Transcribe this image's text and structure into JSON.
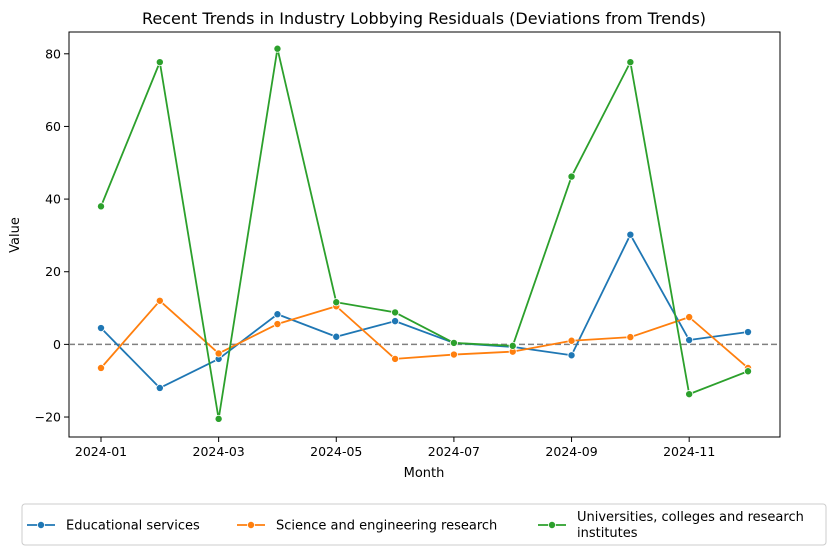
{
  "chart_data": {
    "type": "line",
    "title": "Recent Trends in Industry Lobbying Residuals (Deviations from Trends)",
    "xlabel": "Month",
    "ylabel": "Value",
    "x": [
      "2024-01",
      "2024-02",
      "2024-03",
      "2024-04",
      "2024-05",
      "2024-06",
      "2024-07",
      "2024-08",
      "2024-09",
      "2024-10",
      "2024-11",
      "2024-12"
    ],
    "xticks": [
      "2024-01",
      "2024-03",
      "2024-05",
      "2024-07",
      "2024-09",
      "2024-11"
    ],
    "yticks": [
      -20,
      0,
      20,
      40,
      60,
      80
    ],
    "ylim": [
      -25.5,
      86
    ],
    "reference_line": {
      "y": 0,
      "style": "dashed",
      "color": "#808080"
    },
    "grid": false,
    "legend_position": "bottom",
    "series": [
      {
        "name": "Educational services",
        "color": "#1f77b4",
        "values": [
          4.5,
          -12,
          -4,
          8.3,
          2.1,
          6.4,
          0.4,
          -0.7,
          -3,
          30.2,
          1.2,
          3.4
        ]
      },
      {
        "name": "Science and engineering research",
        "color": "#ff7f0e",
        "values": [
          -6.5,
          12,
          -2.5,
          5.6,
          10.5,
          -4,
          -2.8,
          -2,
          1,
          2,
          7.5,
          -6.5
        ]
      },
      {
        "name": "Universities, colleges and research institutes",
        "color": "#2ca02c",
        "values": [
          38,
          77.7,
          -20.5,
          81.4,
          11.6,
          8.8,
          0.4,
          -0.4,
          46.2,
          77.7,
          -13.7,
          -7.4
        ]
      }
    ]
  }
}
